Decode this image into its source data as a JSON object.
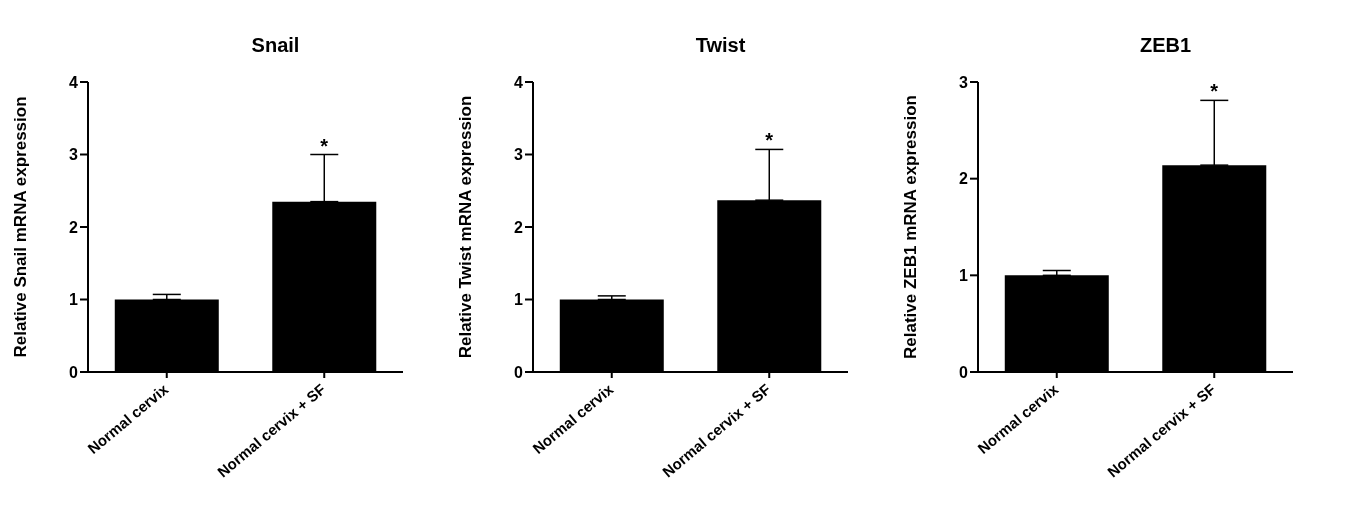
{
  "chart_data": [
    {
      "type": "bar",
      "title": "Snail",
      "ylabel": "Relative Snail mRNA expression",
      "categories": [
        "Normal cervix",
        "Normal cervix + SF"
      ],
      "values": [
        1.0,
        2.35
      ],
      "errors": [
        [
          1.0,
          1.07
        ],
        [
          2.35,
          3.0
        ]
      ],
      "color": "#000000",
      "ylim": [
        0,
        4
      ],
      "yticks": [
        0,
        1,
        2,
        3,
        4
      ],
      "value_labels": [
        null,
        "*"
      ]
    },
    {
      "type": "bar",
      "title": "Twist",
      "ylabel": "Relative Twist mRNA expression",
      "categories": [
        "Normal cervix",
        "Normal cervix + SF"
      ],
      "values": [
        1.0,
        2.37
      ],
      "errors": [
        [
          1.0,
          1.05
        ],
        [
          2.37,
          3.07
        ]
      ],
      "color": "#000000",
      "ylim": [
        0,
        4
      ],
      "yticks": [
        0,
        1,
        2,
        3,
        4
      ],
      "value_labels": [
        null,
        "*"
      ]
    },
    {
      "type": "bar",
      "title": "ZEB1",
      "ylabel": "Relative ZEB1 mRNA expression",
      "categories": [
        "Normal cervix",
        "Normal cervix + SF"
      ],
      "values": [
        1.0,
        2.14
      ],
      "errors": [
        [
          1.0,
          1.05
        ],
        [
          2.14,
          2.81
        ]
      ],
      "color": "#000000",
      "ylim": [
        0,
        3
      ],
      "yticks": [
        0,
        1,
        2,
        3
      ],
      "value_labels": [
        null,
        "*"
      ]
    }
  ]
}
